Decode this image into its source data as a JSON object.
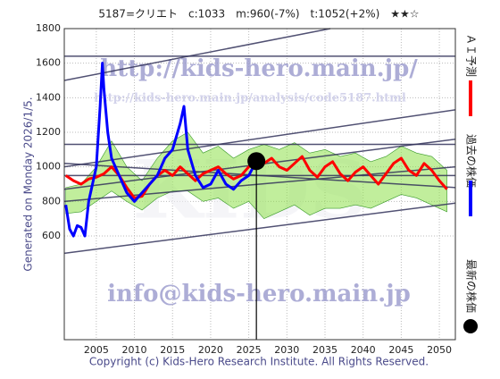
{
  "chart_data": {
    "type": "line",
    "title": "5187=クリエト　c:1033　m:960(-7%)　t:1052(+2%)　★★☆",
    "left_note": "Generated on Monday 2026/1/5.",
    "copyright": "Copyright (c) Kids-Hero Research Institute. All Rights Reserved.",
    "watermarks": [
      "http://kids-hero.main.jp/",
      "http://kids-hero.main.jp/analysis/code5187.html",
      "info@kids-hero.main.jp",
      "KIDS"
    ],
    "xlim": [
      2000.8,
      2052.1
    ],
    "xticks": [
      2005,
      2010,
      2015,
      2020,
      2025,
      2030,
      2035,
      2040,
      2045,
      2050
    ],
    "ylim": [
      0,
      1800
    ],
    "yticks": [
      600,
      800,
      1000,
      1200,
      1400,
      1600,
      1800
    ],
    "grid": true,
    "band": {
      "color": "#8ee04a",
      "x": [
        2001,
        2003,
        2005,
        2007,
        2009,
        2011,
        2013,
        2015,
        2017,
        2019,
        2021,
        2023,
        2025,
        2027,
        2029,
        2031,
        2033,
        2035,
        2037,
        2039,
        2041,
        2043,
        2045,
        2047,
        2049,
        2051
      ],
      "upper": [
        880,
        900,
        1000,
        1150,
        1000,
        920,
        1050,
        1150,
        1200,
        1080,
        1120,
        1050,
        1100,
        1130,
        1100,
        1140,
        1080,
        1100,
        1060,
        1080,
        1030,
        1060,
        1120,
        1080,
        1060,
        980
      ],
      "lower": [
        730,
        740,
        800,
        860,
        800,
        750,
        820,
        860,
        860,
        800,
        820,
        760,
        800,
        700,
        740,
        780,
        720,
        760,
        760,
        780,
        760,
        800,
        840,
        820,
        780,
        740
      ]
    },
    "series": [
      {
        "name": "ＡＩ予測",
        "color": "#ff0000",
        "x": [
          2001,
          2002,
          2003,
          2004,
          2005,
          2006,
          2007,
          2008,
          2009,
          2010,
          2011,
          2012,
          2013,
          2014,
          2015,
          2016,
          2017,
          2018,
          2019,
          2020,
          2021,
          2022,
          2023,
          2024,
          2025,
          2026,
          2027,
          2028,
          2029,
          2030,
          2031,
          2032,
          2033,
          2034,
          2035,
          2036,
          2037,
          2038,
          2039,
          2040,
          2041,
          2042,
          2043,
          2044,
          2045,
          2046,
          2047,
          2048,
          2049,
          2050,
          2051
        ],
        "values": [
          950,
          920,
          900,
          930,
          940,
          960,
          1000,
          950,
          880,
          820,
          830,
          900,
          950,
          980,
          950,
          1000,
          960,
          920,
          960,
          980,
          1000,
          960,
          930,
          950,
          1000,
          1030,
          1020,
          1050,
          1000,
          980,
          1020,
          1060,
          980,
          940,
          1000,
          1030,
          960,
          920,
          970,
          1000,
          950,
          900,
          960,
          1020,
          1050,
          980,
          950,
          1020,
          980,
          920,
          870
        ]
      },
      {
        "name": "過去の株価",
        "color": "#0000ff",
        "x": [
          2001,
          2001.5,
          2002,
          2002.5,
          2003,
          2003.5,
          2004,
          2004.5,
          2005,
          2005.5,
          2005.8,
          2006,
          2006.5,
          2007,
          2008,
          2009,
          2010,
          2011,
          2012,
          2013,
          2014,
          2015,
          2016,
          2016.5,
          2017,
          2018,
          2019,
          2020,
          2021,
          2022,
          2023,
          2024,
          2025,
          2026
        ],
        "values": [
          780,
          640,
          600,
          660,
          650,
          600,
          800,
          900,
          1000,
          1350,
          1600,
          1450,
          1200,
          1050,
          950,
          850,
          800,
          850,
          900,
          950,
          1050,
          1100,
          1250,
          1350,
          1100,
          950,
          880,
          900,
          980,
          900,
          870,
          920,
          950,
          1033
        ]
      }
    ],
    "latest": {
      "name": "最新の株価",
      "color": "#000000",
      "x": 2026,
      "y": 1033
    },
    "trend_lines": [
      {
        "x": [
          2000.8,
          2052.1
        ],
        "y": [
          1640,
          1640
        ]
      },
      {
        "x": [
          2000.8,
          2035.7
        ],
        "y": [
          1500,
          1800
        ]
      },
      {
        "x": [
          2000.8,
          2052.1
        ],
        "y": [
          1130,
          1130
        ]
      },
      {
        "x": [
          2000.8,
          2052.1
        ],
        "y": [
          1000,
          1330
        ]
      },
      {
        "x": [
          2000.8,
          2052.1
        ],
        "y": [
          870,
          1160
        ]
      },
      {
        "x": [
          2000.8,
          2052.1
        ],
        "y": [
          950,
          950
        ]
      },
      {
        "x": [
          2000.8,
          2052.1
        ],
        "y": [
          800,
          1000
        ]
      },
      {
        "x": [
          2000.8,
          2052.1
        ],
        "y": [
          500,
          790
        ]
      },
      {
        "x": [
          2000.8,
          2052.1
        ],
        "y": [
          1020,
          880
        ]
      }
    ]
  }
}
